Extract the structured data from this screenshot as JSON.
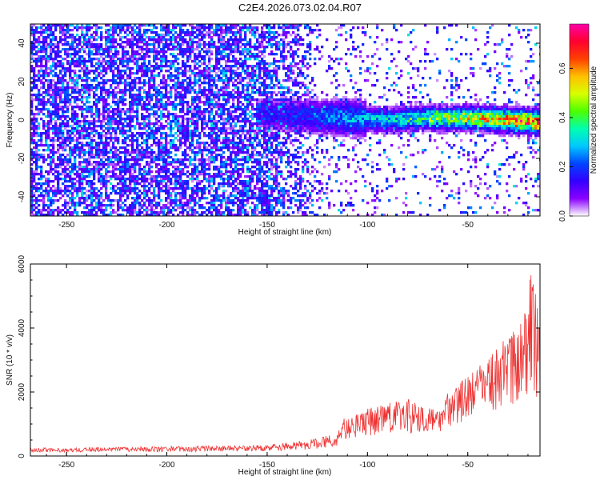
{
  "title": "C2E4.2026.073.02.04.R07",
  "chart_data": [
    {
      "type": "heatmap",
      "xlabel": "Height of straight line (km)",
      "ylabel": "Frequency (Hz)",
      "xlim": [
        -268,
        -14
      ],
      "ylim": [
        -50,
        50
      ],
      "xticks": [
        -250,
        -200,
        -150,
        -100,
        -50
      ],
      "yticks": [
        -40,
        -20,
        0,
        20,
        40
      ],
      "colorbar": {
        "label": "Normalized spectral amplitude",
        "range": [
          0,
          0.78
        ],
        "ticks": [
          "0.0",
          "0.2",
          "0.4",
          "0.6"
        ],
        "colors": [
          "#ffffff",
          "#8a00ff",
          "#3300ff",
          "#0044ff",
          "#00c8ff",
          "#00ffb0",
          "#4cff00",
          "#d8ff00",
          "#ffc000",
          "#ff4000",
          "#ff0030",
          "#ff00a8"
        ]
      },
      "ridge": {
        "description_points_x": [
          -150,
          -130,
          -110,
          -90,
          -70,
          -50,
          -30,
          -16
        ],
        "center_freq": [
          3,
          2,
          1,
          0,
          1,
          1,
          0,
          -1
        ],
        "peak_amplitude": [
          0.15,
          0.2,
          0.3,
          0.35,
          0.45,
          0.55,
          0.7,
          0.75
        ]
      }
    },
    {
      "type": "line",
      "xlabel": "Height of straight line (km)",
      "ylabel": "SNR (10 * v/v)",
      "xlim": [
        -268,
        -14
      ],
      "ylim": [
        0,
        6000
      ],
      "xticks": [
        -250,
        -200,
        -150,
        -100,
        -50
      ],
      "yticks": [
        0,
        2000,
        4000,
        6000
      ],
      "series": [
        {
          "color": "#ee3333",
          "envelope_x": [
            -268,
            -200,
            -150,
            -130,
            -115,
            -112,
            -100,
            -80,
            -65,
            -60,
            -50,
            -40,
            -30,
            -22,
            -18,
            -14
          ],
          "envelope_y": [
            250,
            300,
            350,
            500,
            700,
            1200,
            1500,
            1800,
            1400,
            2000,
            2600,
            3000,
            3800,
            4300,
            6000,
            4000
          ],
          "baseline_y": [
            120,
            130,
            150,
            200,
            300,
            500,
            600,
            700,
            700,
            900,
            1100,
            1300,
            1500,
            1700,
            1800,
            1800
          ]
        }
      ]
    }
  ]
}
